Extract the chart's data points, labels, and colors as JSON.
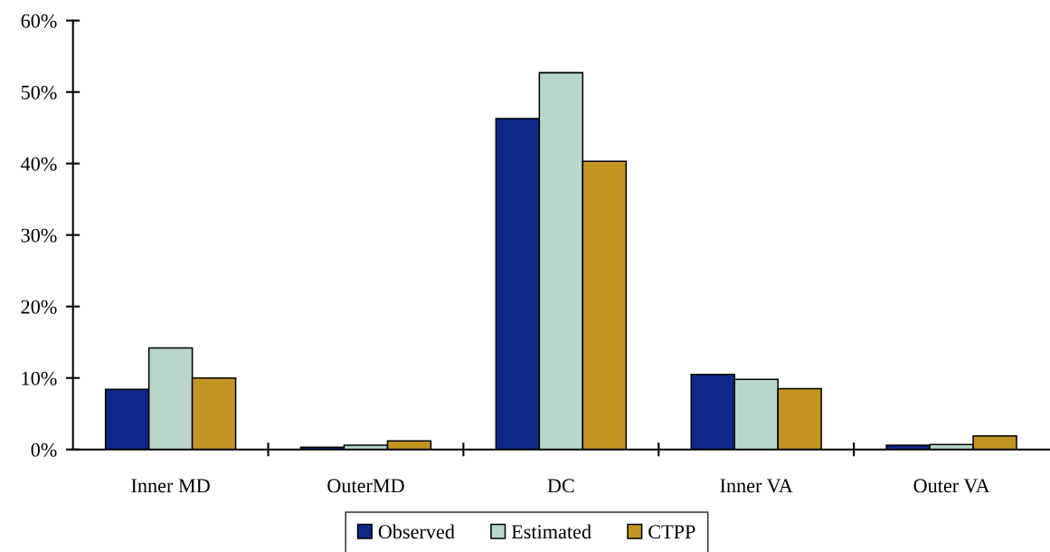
{
  "chart_data": {
    "type": "bar",
    "categories": [
      "Inner MD",
      "OuterMD",
      "DC",
      "Inner VA",
      "Outer VA"
    ],
    "series": [
      {
        "name": "Observed",
        "color": "#0f2787",
        "values": [
          8.4,
          0.3,
          46.3,
          10.5,
          0.6
        ]
      },
      {
        "name": "Estimated",
        "color": "#b9d6cb",
        "values": [
          14.2,
          0.6,
          52.7,
          9.8,
          0.7
        ]
      },
      {
        "name": "CTPP",
        "color": "#c29522",
        "values": [
          10.0,
          1.2,
          40.3,
          8.5,
          1.9
        ]
      }
    ],
    "ylim": [
      0,
      60
    ],
    "yticks": [
      {
        "value": 0,
        "label": "0%"
      },
      {
        "value": 10,
        "label": "10%"
      },
      {
        "value": 20,
        "label": "20%"
      },
      {
        "value": 30,
        "label": "30%"
      },
      {
        "value": 40,
        "label": "40%"
      },
      {
        "value": 50,
        "label": "50%"
      },
      {
        "value": 60,
        "label": "60%"
      }
    ],
    "grid": false,
    "legend": "bottom"
  }
}
